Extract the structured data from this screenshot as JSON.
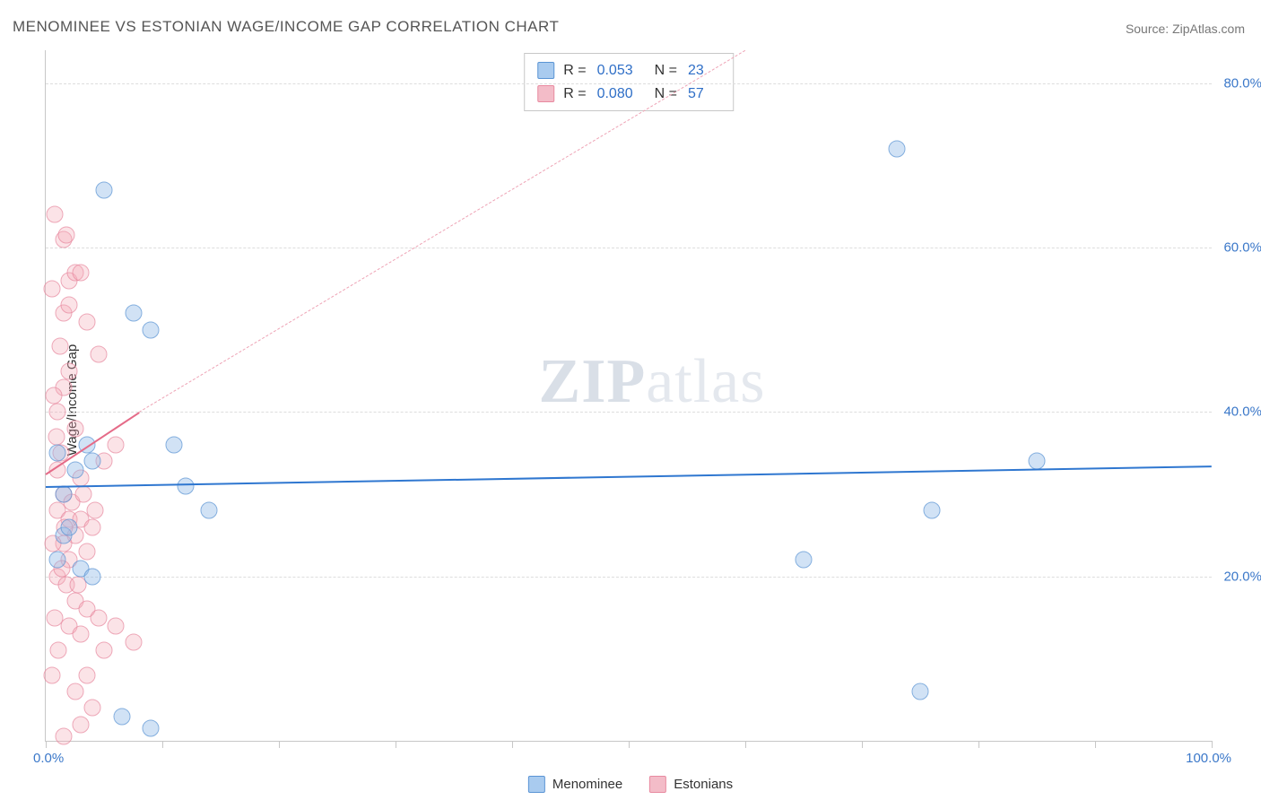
{
  "title": "MENOMINEE VS ESTONIAN WAGE/INCOME GAP CORRELATION CHART",
  "source_prefix": "Source: ",
  "source_name": "ZipAtlas.com",
  "ylabel": "Wage/Income Gap",
  "watermark_1": "ZIP",
  "watermark_2": "atlas",
  "chart": {
    "type": "scatter",
    "xlim": [
      0,
      100
    ],
    "ylim": [
      0,
      84
    ],
    "x_tick_step": 10,
    "x_min_label": "0.0%",
    "x_max_label": "100.0%",
    "y_ticks": [
      20,
      40,
      60,
      80
    ],
    "y_tick_labels": [
      "20.0%",
      "40.0%",
      "60.0%",
      "80.0%"
    ],
    "grid_color": "#dddddd",
    "axis_color": "#c7c7c7",
    "background_color": "#ffffff",
    "series": [
      {
        "name": "Menominee",
        "color_fill": "#a9cbef",
        "color_stroke": "#5a94d4",
        "R_label": "R = ",
        "R": "0.053",
        "N_label": "N = ",
        "N": "23",
        "trend": {
          "x1": 0,
          "y1": 31.0,
          "x2": 100,
          "y2": 33.5,
          "style": "solid",
          "color": "#2f77d0",
          "width": 2.5
        },
        "points": [
          [
            1.0,
            35
          ],
          [
            1.5,
            25
          ],
          [
            3.5,
            36
          ],
          [
            4.0,
            34
          ],
          [
            7.5,
            52
          ],
          [
            9.0,
            50
          ],
          [
            5.0,
            67
          ],
          [
            11.0,
            36
          ],
          [
            12.0,
            31
          ],
          [
            14.0,
            28
          ],
          [
            6.5,
            3
          ],
          [
            9.0,
            1.5
          ],
          [
            65.0,
            22
          ],
          [
            73.0,
            72
          ],
          [
            76.0,
            28
          ],
          [
            85.0,
            34
          ],
          [
            75.0,
            6
          ],
          [
            2.0,
            26
          ],
          [
            1.5,
            30
          ],
          [
            3.0,
            21
          ],
          [
            4.0,
            20
          ],
          [
            2.5,
            33
          ],
          [
            1.0,
            22
          ]
        ]
      },
      {
        "name": "Estonians",
        "color_fill": "#f3bcc8",
        "color_stroke": "#e88aa0",
        "R_label": "R = ",
        "R": "0.080",
        "N_label": "N = ",
        "N": "57",
        "trend_solid": {
          "x1": 0,
          "y1": 32.5,
          "x2": 8,
          "y2": 40,
          "style": "solid",
          "color": "#e56b88",
          "width": 2.5
        },
        "trend_dash": {
          "x1": 8,
          "y1": 40,
          "x2": 60,
          "y2": 84,
          "style": "dashed",
          "color": "#eea3b5",
          "width": 1.5
        },
        "points": [
          [
            0.8,
            64
          ],
          [
            1.5,
            61
          ],
          [
            1.8,
            61.5
          ],
          [
            2.0,
            56
          ],
          [
            2.5,
            57
          ],
          [
            3.0,
            57
          ],
          [
            0.5,
            55
          ],
          [
            1.5,
            52
          ],
          [
            2.0,
            53
          ],
          [
            3.5,
            51
          ],
          [
            4.5,
            47
          ],
          [
            2.0,
            45
          ],
          [
            1.5,
            43
          ],
          [
            1.0,
            40
          ],
          [
            2.5,
            38
          ],
          [
            6.0,
            36
          ],
          [
            5.0,
            34
          ],
          [
            3.0,
            32
          ],
          [
            1.5,
            30
          ],
          [
            1.0,
            28
          ],
          [
            2.0,
            27
          ],
          [
            3.0,
            27
          ],
          [
            2.5,
            25
          ],
          [
            1.5,
            24
          ],
          [
            4.0,
            26
          ],
          [
            3.5,
            23
          ],
          [
            2.0,
            22
          ],
          [
            1.0,
            20
          ],
          [
            1.8,
            19
          ],
          [
            2.5,
            17
          ],
          [
            3.5,
            16
          ],
          [
            4.5,
            15
          ],
          [
            2.0,
            14
          ],
          [
            3.0,
            13
          ],
          [
            6.0,
            14
          ],
          [
            5.0,
            11
          ],
          [
            7.5,
            12
          ],
          [
            3.5,
            8
          ],
          [
            2.5,
            6
          ],
          [
            4.0,
            4
          ],
          [
            3.0,
            2
          ],
          [
            1.5,
            0.5
          ],
          [
            1.2,
            48
          ],
          [
            0.7,
            42
          ],
          [
            0.9,
            37
          ],
          [
            1.3,
            35
          ],
          [
            1.0,
            33
          ],
          [
            2.2,
            29
          ],
          [
            1.6,
            26
          ],
          [
            0.6,
            24
          ],
          [
            1.4,
            21
          ],
          [
            0.8,
            15
          ],
          [
            1.1,
            11
          ],
          [
            0.5,
            8
          ],
          [
            2.8,
            19
          ],
          [
            3.2,
            30
          ],
          [
            4.2,
            28
          ]
        ]
      }
    ]
  },
  "legend": {
    "items": [
      {
        "label": "Menominee",
        "swatch": "blue"
      },
      {
        "label": "Estonians",
        "swatch": "pink"
      }
    ]
  }
}
